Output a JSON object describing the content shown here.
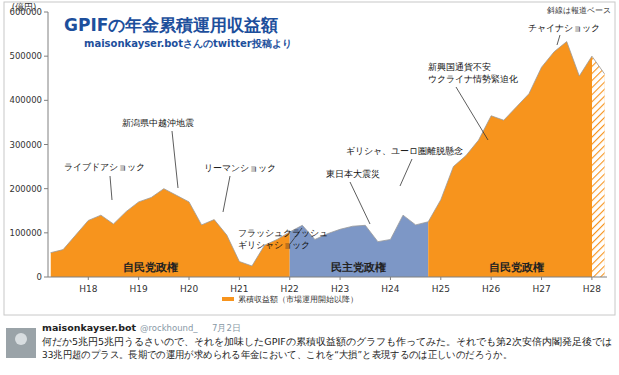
{
  "chart_data": {
    "type": "area",
    "title": "GPIFの年金累積運用収益額",
    "subtitle": "maisonkayser.botさんのtwitter投稿より",
    "y_label": "(億円)",
    "note": "斜線は報道ベース",
    "x": [
      17.25,
      17.5,
      17.75,
      18.0,
      18.25,
      18.5,
      18.75,
      19.0,
      19.25,
      19.5,
      19.75,
      20.0,
      20.25,
      20.5,
      20.75,
      21.0,
      21.25,
      21.5,
      21.75,
      22.0,
      22.25,
      22.5,
      22.75,
      23.0,
      23.25,
      23.5,
      23.75,
      24.0,
      24.25,
      24.5,
      24.75,
      25.0,
      25.25,
      25.5,
      25.75,
      26.0,
      26.25,
      26.5,
      26.75,
      27.0,
      27.25,
      27.5,
      27.75,
      28.0,
      28.25
    ],
    "series": [
      {
        "name": "累積収益額（市場運用開始以降）",
        "color": "#f7941d",
        "values": [
          55000,
          62000,
          95000,
          128000,
          140000,
          120000,
          148000,
          170000,
          180000,
          200000,
          185000,
          170000,
          118000,
          130000,
          95000,
          35000,
          25000,
          72000,
          85000,
          102000,
          117000,
          85000,
          98000,
          108000,
          115000,
          117000,
          80000,
          85000,
          140000,
          118000,
          125000,
          175000,
          250000,
          275000,
          310000,
          365000,
          355000,
          385000,
          415000,
          475000,
          510000,
          533000,
          455000,
          500000,
          460000
        ]
      }
    ],
    "eras": [
      {
        "label": "自民党政権",
        "from": 17.25,
        "to": 22.0,
        "color": "#f7941d"
      },
      {
        "label": "民主党政権",
        "from": 22.0,
        "to": 24.75,
        "color": "#7d97c6"
      },
      {
        "label": "自民党政権",
        "from": 24.75,
        "to": 28.25,
        "color": "#f7941d"
      }
    ],
    "estimate_from": 28.0,
    "annotations": [
      [
        "ライブドアショック"
      ],
      [
        "新潟県中越沖地震"
      ],
      [
        "リーマンショック"
      ],
      [
        "フラッシュクラッシュ",
        "ギリシャショック"
      ],
      [
        "東日本大震災"
      ],
      [
        "ギリシャ、ユーロ圏離脱懸念"
      ],
      [
        "新興国通貨不安",
        "ウクライナ情勢緊迫化"
      ],
      [
        "チャイナショック"
      ]
    ],
    "xlim": [
      17.2,
      28.3
    ],
    "xticks": [
      {
        "value": 18,
        "label": "H18"
      },
      {
        "value": 19,
        "label": "H19"
      },
      {
        "value": 20,
        "label": "H20"
      },
      {
        "value": 21,
        "label": "H21"
      },
      {
        "value": 22,
        "label": "H22"
      },
      {
        "value": 23,
        "label": "H23"
      },
      {
        "value": 24,
        "label": "H24"
      },
      {
        "value": 25,
        "label": "H25"
      },
      {
        "value": 26,
        "label": "H26"
      },
      {
        "value": 27,
        "label": "H27"
      },
      {
        "value": 28,
        "label": "H28"
      }
    ],
    "ylim": [
      0,
      600000
    ],
    "yticks": [
      0,
      100000,
      200000,
      300000,
      400000,
      500000,
      600000
    ],
    "grid": false,
    "legend": "bottom"
  },
  "tweet": {
    "user": "maisonkayser.bot",
    "handle": "@rockhound_",
    "date": "7月2日",
    "text_lines": [
      "何だか5兆円5兆円うるさいので、それを加味したGPIFの累積収益額のグラフも作ってみた。それでも第2次安倍内閣発足後では",
      "33兆円超のプラス。長期での運用が求められる年金において、これを“大損”と表現するのは正しいのだろうか。"
    ]
  }
}
